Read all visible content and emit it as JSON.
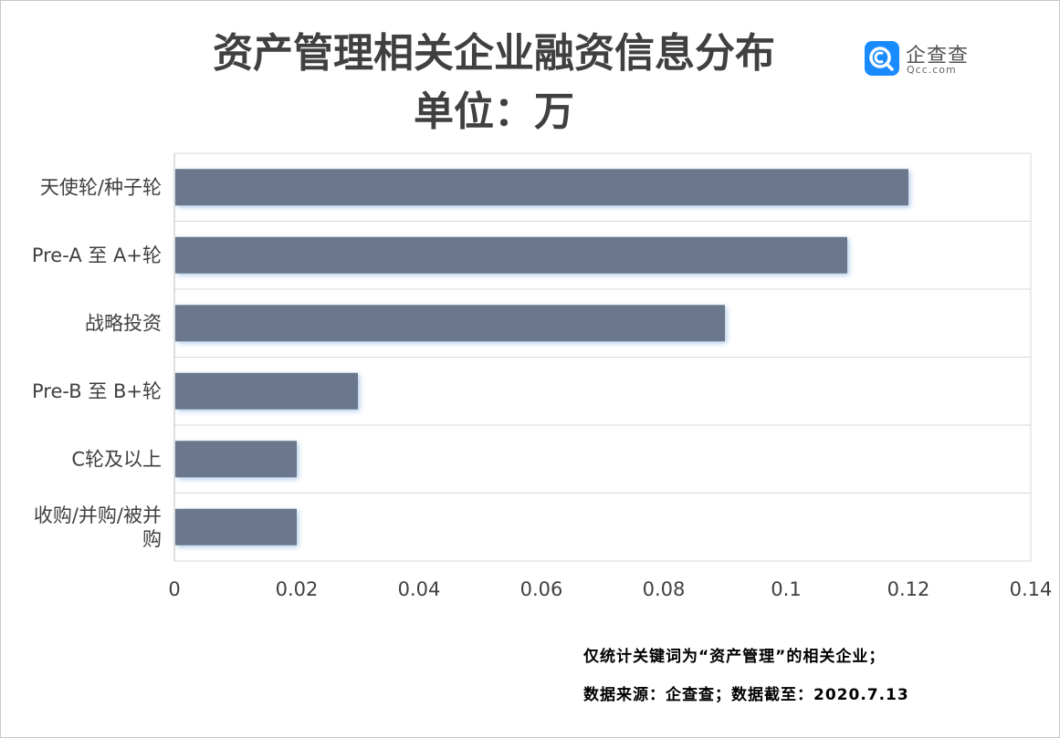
{
  "header": {
    "title_line1": "资产管理相关企业融资信息分布",
    "title_line2": "单位：万"
  },
  "logo": {
    "name": "企查查",
    "domain": "Qcc.com",
    "brand_color": "#1a8bff"
  },
  "chart_data": {
    "type": "bar",
    "orientation": "horizontal",
    "categories": [
      "天使轮/种子轮",
      "Pre-A 至 A+轮",
      "战略投资",
      "Pre-B 至 B+轮",
      "C轮及以上",
      "收购/并购/被并购"
    ],
    "category_lines": [
      [
        "天使轮/种子轮"
      ],
      [
        "Pre-A 至 A+轮"
      ],
      [
        "战略投资"
      ],
      [
        "Pre-B 至 B+轮"
      ],
      [
        "C轮及以上"
      ],
      [
        "收购/并购/被并",
        "购"
      ]
    ],
    "values": [
      0.12,
      0.11,
      0.09,
      0.03,
      0.02,
      0.02
    ],
    "xlim": [
      0,
      0.14
    ],
    "xticks": [
      "0",
      "0.02",
      "0.04",
      "0.06",
      "0.08",
      "0.1",
      "0.12",
      "0.14"
    ],
    "bar_color": "#6b778d",
    "grid": true
  },
  "footnotes": {
    "line1": "仅统计关键词为“资产管理”的相关企业；",
    "line2": "数据来源：企查查；数据截至：2020.7.13"
  }
}
